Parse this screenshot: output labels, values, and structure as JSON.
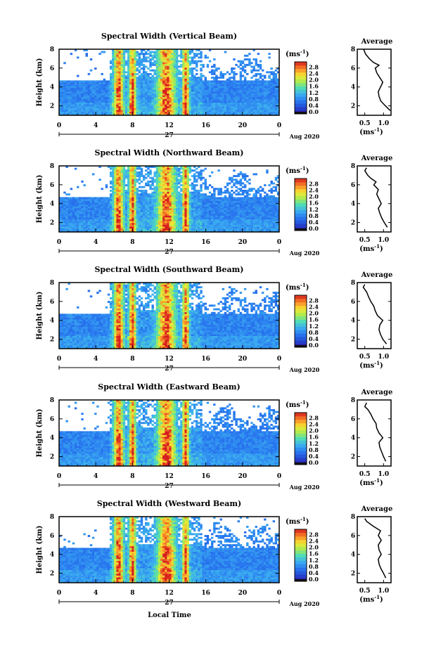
{
  "chart_data": {
    "type": "heatmap",
    "shared_xlabel": "Local Time",
    "panels": [
      {
        "title": "Spectral Width (Vertical Beam)",
        "ylabel": "Height (km)",
        "xticks": [
          "0",
          "4",
          "8",
          "12",
          "16",
          "20",
          "0"
        ],
        "xlim": [
          0,
          24
        ],
        "yticks": [
          "2",
          "4",
          "6",
          "8"
        ],
        "ylim": [
          1,
          8
        ],
        "date_day": "27",
        "date_label": "Aug 2020",
        "colorbar": {
          "unit": "(ms",
          "unit_sup": "-1",
          "unit_close": ")",
          "ticks": [
            "0.0",
            "0.4",
            "0.8",
            "1.2",
            "1.6",
            "2.0",
            "2.4",
            "2.8"
          ],
          "range": [
            0,
            3.0
          ]
        },
        "average": {
          "title": "Average",
          "xlabel": "(ms",
          "xlabel_sup": "-1",
          "xlabel_close": ")",
          "xticks": [
            "0.5",
            "1.0"
          ],
          "xlim": [
            0.3,
            1.2
          ],
          "yticks": [
            "2",
            "4",
            "6",
            "8"
          ],
          "profile": [
            [
              1.18,
              1.5
            ],
            [
              1.05,
              2.0
            ],
            [
              0.93,
              2.5
            ],
            [
              0.88,
              3.0
            ],
            [
              0.86,
              3.5
            ],
            [
              0.92,
              4.0
            ],
            [
              0.98,
              4.5
            ],
            [
              0.9,
              5.0
            ],
            [
              0.82,
              5.5
            ],
            [
              0.78,
              6.0
            ],
            [
              0.88,
              6.3
            ],
            [
              0.73,
              6.6
            ],
            [
              0.62,
              7.0
            ],
            [
              0.52,
              7.5
            ],
            [
              0.47,
              8.0
            ]
          ]
        }
      },
      {
        "title": "Spectral Width (Northward Beam)",
        "ylabel": "Height (km)",
        "xticks": [
          "0",
          "4",
          "8",
          "12",
          "16",
          "20",
          "0"
        ],
        "xlim": [
          0,
          24
        ],
        "yticks": [
          "2",
          "4",
          "6",
          "8"
        ],
        "ylim": [
          1,
          8
        ],
        "date_day": "27",
        "date_label": "Aug 2020",
        "colorbar": {
          "unit": "(ms",
          "unit_sup": "-1",
          "unit_close": ")",
          "ticks": [
            "0.0",
            "0.4",
            "0.8",
            "1.2",
            "1.6",
            "2.0",
            "2.4",
            "2.8"
          ],
          "range": [
            0,
            3.0
          ]
        },
        "average": {
          "title": "Average",
          "xlabel": "(ms",
          "xlabel_sup": "-1",
          "xlabel_close": ")",
          "xticks": [
            "0.5",
            "1.0"
          ],
          "xlim": [
            0.3,
            1.2
          ],
          "yticks": [
            "2",
            "4",
            "6",
            "8"
          ],
          "profile": [
            [
              1.1,
              1.5
            ],
            [
              1.02,
              2.0
            ],
            [
              0.95,
              2.5
            ],
            [
              0.9,
              3.0
            ],
            [
              0.86,
              3.5
            ],
            [
              0.94,
              4.0
            ],
            [
              0.88,
              4.5
            ],
            [
              0.82,
              5.0
            ],
            [
              0.86,
              5.5
            ],
            [
              0.74,
              6.0
            ],
            [
              0.8,
              6.3
            ],
            [
              0.66,
              6.7
            ],
            [
              0.58,
              7.0
            ],
            [
              0.5,
              7.5
            ],
            [
              0.55,
              7.8
            ]
          ]
        }
      },
      {
        "title": "Spectral Width (Southward Beam)",
        "ylabel": "Height (km)",
        "xticks": [
          "0",
          "4",
          "8",
          "12",
          "16",
          "20",
          "0"
        ],
        "xlim": [
          0,
          24
        ],
        "yticks": [
          "2",
          "4",
          "6",
          "8"
        ],
        "ylim": [
          1,
          8
        ],
        "date_day": "27",
        "date_label": "Aug 2020",
        "colorbar": {
          "unit": "(ms",
          "unit_sup": "-1",
          "unit_close": ")",
          "ticks": [
            "0.0",
            "0.4",
            "0.8",
            "1.2",
            "1.6",
            "2.0",
            "2.4",
            "2.8"
          ],
          "range": [
            0,
            3.0
          ]
        },
        "average": {
          "title": "Average",
          "xlabel": "(ms",
          "xlabel_sup": "-1",
          "xlabel_close": ")",
          "xticks": [
            "0.5",
            "1.0"
          ],
          "xlim": [
            0.3,
            1.2
          ],
          "yticks": [
            "2",
            "4",
            "6",
            "8"
          ],
          "profile": [
            [
              1.08,
              1.5
            ],
            [
              0.98,
              2.0
            ],
            [
              0.92,
              2.5
            ],
            [
              0.88,
              3.0
            ],
            [
              0.9,
              3.5
            ],
            [
              0.98,
              4.0
            ],
            [
              0.84,
              4.5
            ],
            [
              0.78,
              5.0
            ],
            [
              0.74,
              5.5
            ],
            [
              0.66,
              6.0
            ],
            [
              0.6,
              6.5
            ],
            [
              0.55,
              7.0
            ],
            [
              0.46,
              7.5
            ],
            [
              0.5,
              7.8
            ]
          ]
        }
      },
      {
        "title": "Spectral Width (Eastward Beam)",
        "ylabel": "Height (km)",
        "xticks": [
          "0",
          "4",
          "8",
          "12",
          "16",
          "20",
          "0"
        ],
        "xlim": [
          0,
          24
        ],
        "yticks": [
          "2",
          "4",
          "6",
          "8"
        ],
        "ylim": [
          1,
          8
        ],
        "date_day": "27",
        "date_label": "Aug 2020",
        "colorbar": {
          "unit": "(ms",
          "unit_sup": "-1",
          "unit_close": ")",
          "ticks": [
            "0.0",
            "0.4",
            "0.8",
            "1.2",
            "1.6",
            "2.0",
            "2.4",
            "2.8"
          ],
          "range": [
            0,
            3.0
          ]
        },
        "average": {
          "title": "Average",
          "xlabel": "(ms",
          "xlabel_sup": "-1",
          "xlabel_close": ")",
          "xticks": [
            "0.5",
            "1.0"
          ],
          "xlim": [
            0.3,
            1.2
          ],
          "yticks": [
            "2",
            "4",
            "6",
            "8"
          ],
          "profile": [
            [
              1.06,
              1.5
            ],
            [
              1.0,
              2.0
            ],
            [
              0.95,
              2.5
            ],
            [
              0.9,
              3.0
            ],
            [
              0.88,
              3.5
            ],
            [
              0.98,
              4.0
            ],
            [
              0.88,
              4.5
            ],
            [
              0.82,
              5.0
            ],
            [
              0.8,
              5.5
            ],
            [
              0.72,
              6.0
            ],
            [
              0.66,
              6.5
            ],
            [
              0.58,
              7.0
            ],
            [
              0.5,
              7.3
            ],
            [
              0.55,
              7.7
            ]
          ]
        }
      },
      {
        "title": "Spectral Width (Westward Beam)",
        "ylabel": "Height (km)",
        "xticks": [
          "0",
          "4",
          "8",
          "12",
          "16",
          "20",
          "0"
        ],
        "xlim": [
          0,
          24
        ],
        "yticks": [
          "2",
          "4",
          "6",
          "8"
        ],
        "ylim": [
          1,
          8
        ],
        "date_day": "27",
        "date_label": "Aug 2020",
        "colorbar": {
          "unit": "(ms",
          "unit_sup": "-1",
          "unit_close": ")",
          "ticks": [
            "0.0",
            "0.4",
            "0.8",
            "1.2",
            "1.6",
            "2.0",
            "2.4",
            "2.8"
          ],
          "range": [
            0,
            3.0
          ]
        },
        "average": {
          "title": "Average",
          "xlabel": "(ms",
          "xlabel_sup": "-1",
          "xlabel_close": ")",
          "xticks": [
            "0.5",
            "1.0"
          ],
          "xlim": [
            0.3,
            1.2
          ],
          "yticks": [
            "2",
            "4",
            "6",
            "8"
          ],
          "profile": [
            [
              1.06,
              1.5
            ],
            [
              1.0,
              2.0
            ],
            [
              0.93,
              2.5
            ],
            [
              0.88,
              3.0
            ],
            [
              0.86,
              3.5
            ],
            [
              0.94,
              4.0
            ],
            [
              0.88,
              4.5
            ],
            [
              0.86,
              5.0
            ],
            [
              0.94,
              5.5
            ],
            [
              0.86,
              6.0
            ],
            [
              0.92,
              6.5
            ],
            [
              0.72,
              7.0
            ],
            [
              0.55,
              7.5
            ],
            [
              0.5,
              7.8
            ]
          ]
        }
      }
    ]
  }
}
